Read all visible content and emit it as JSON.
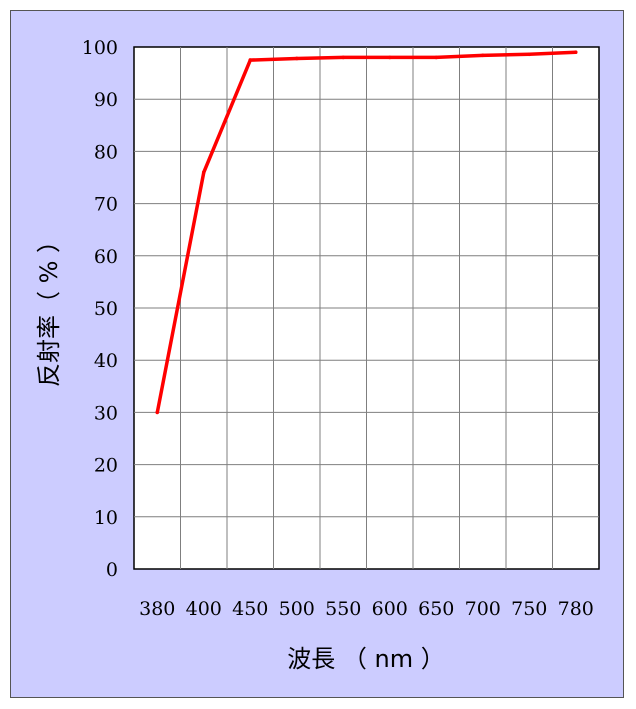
{
  "chart_data": {
    "type": "line",
    "title": "",
    "xlabel": "波長 （ nm ）",
    "ylabel": "反射率（ % ）",
    "categories": [
      "380",
      "400",
      "450",
      "500",
      "550",
      "600",
      "650",
      "700",
      "750",
      "780"
    ],
    "series": [
      {
        "name": "",
        "color": "#ff0000",
        "values": [
          30,
          76,
          97.5,
          97.8,
          98,
          98,
          98,
          98.4,
          98.6,
          99
        ]
      }
    ],
    "yticks": [
      "0",
      "10",
      "20",
      "30",
      "40",
      "50",
      "60",
      "70",
      "80",
      "90",
      "100"
    ],
    "ylim": [
      0,
      100
    ],
    "grid": true,
    "legend": "none",
    "colors": {
      "background": "#ccccff",
      "plot_area": "#ffffff",
      "gridline": "#7f7f7f",
      "line": "#ff0000"
    }
  }
}
